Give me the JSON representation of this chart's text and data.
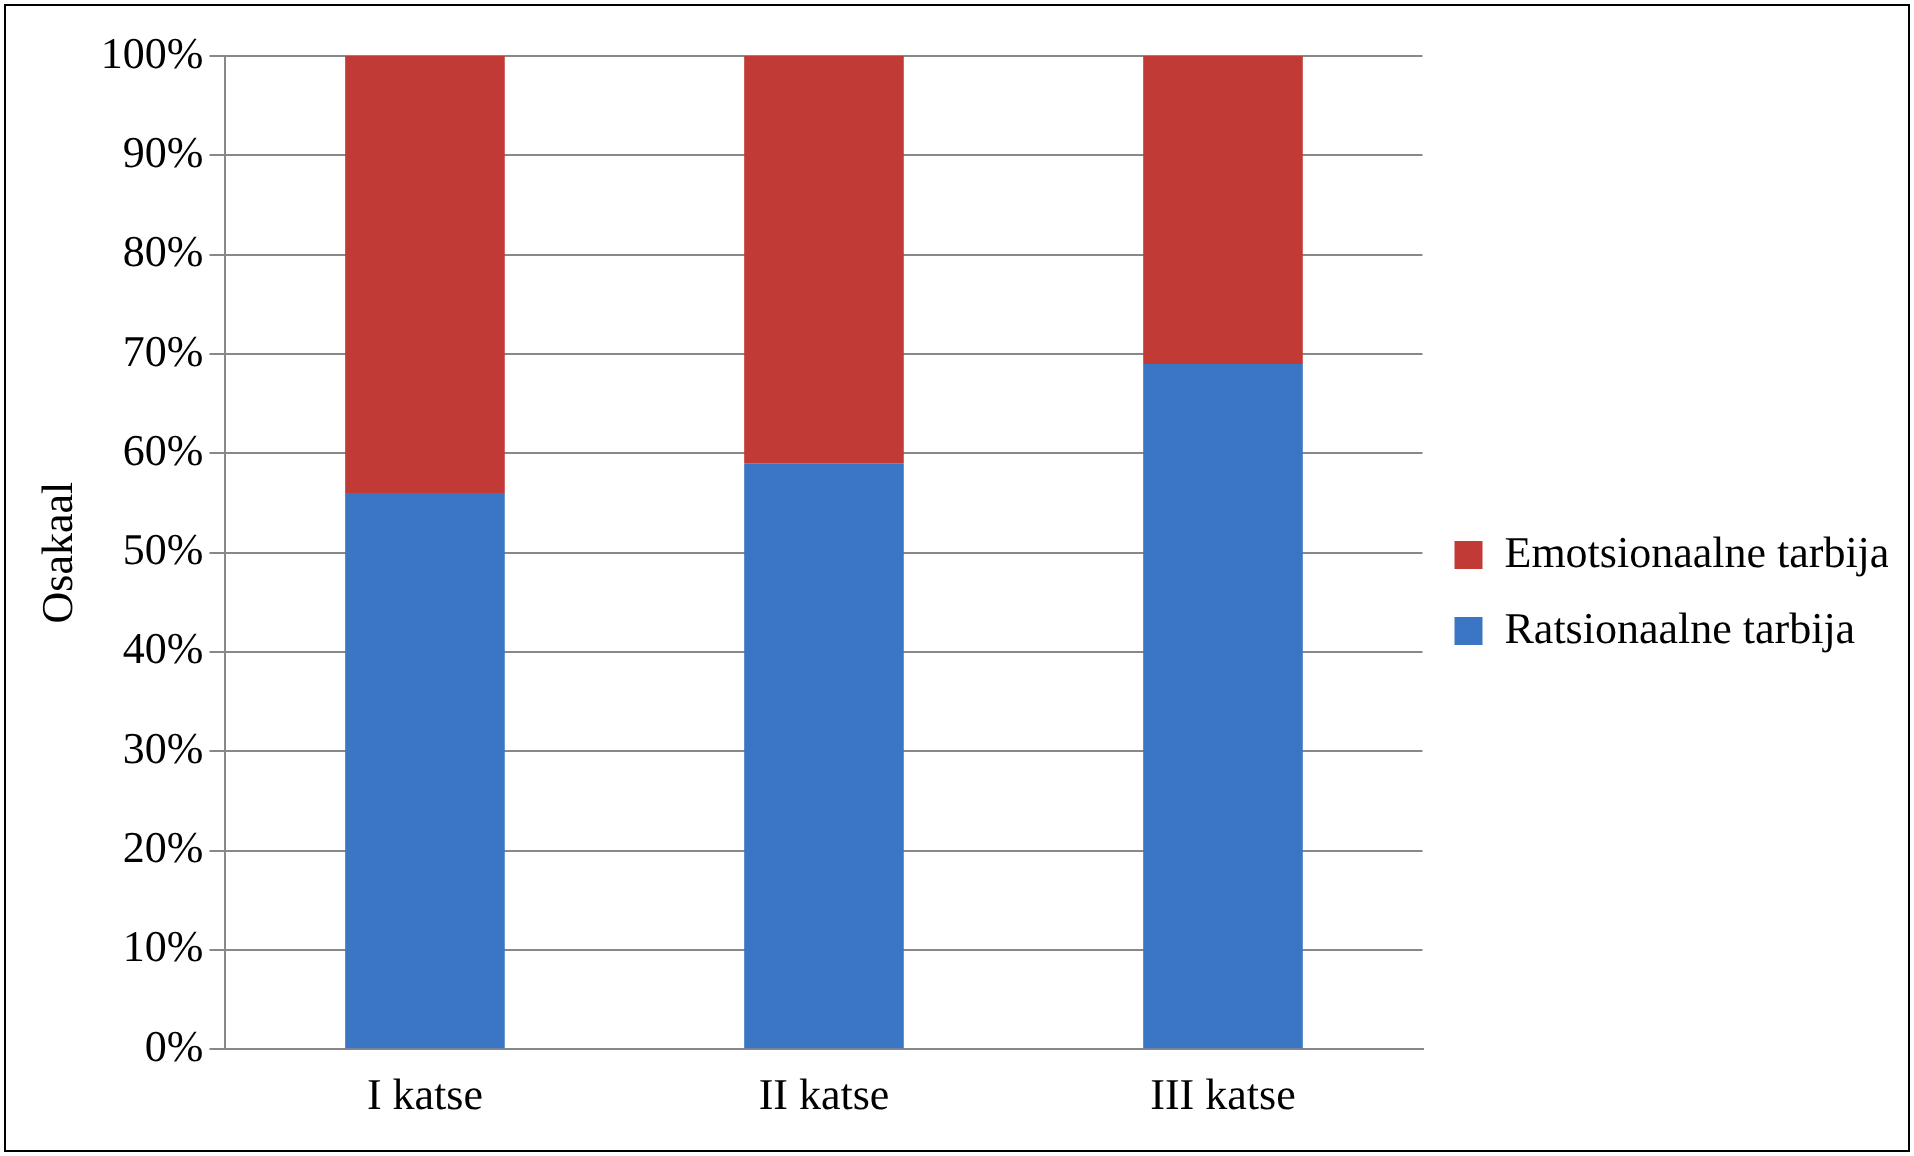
{
  "chart_data": {
    "type": "bar",
    "ylabel": "Osakaal",
    "stacked": true,
    "categories": [
      "I katse",
      "II katse",
      "III katse"
    ],
    "series": [
      {
        "name": "Ratsionaalne tarbija",
        "color": "#3a76c4",
        "values": [
          56,
          59,
          69
        ]
      },
      {
        "name": "Emotsionaalne tarbija",
        "color": "#c23a35",
        "values": [
          44,
          41,
          31
        ]
      }
    ],
    "ylim": [
      0,
      100
    ],
    "yticks": [
      {
        "value": 0,
        "label": "0%"
      },
      {
        "value": 10,
        "label": "10%"
      },
      {
        "value": 20,
        "label": "20%"
      },
      {
        "value": 30,
        "label": "30%"
      },
      {
        "value": 40,
        "label": "40%"
      },
      {
        "value": 50,
        "label": "50%"
      },
      {
        "value": 60,
        "label": "60%"
      },
      {
        "value": 70,
        "label": "70%"
      },
      {
        "value": 80,
        "label": "80%"
      },
      {
        "value": 90,
        "label": "90%"
      },
      {
        "value": 100,
        "label": "100%"
      }
    ],
    "grid": "y",
    "legend": "right"
  }
}
